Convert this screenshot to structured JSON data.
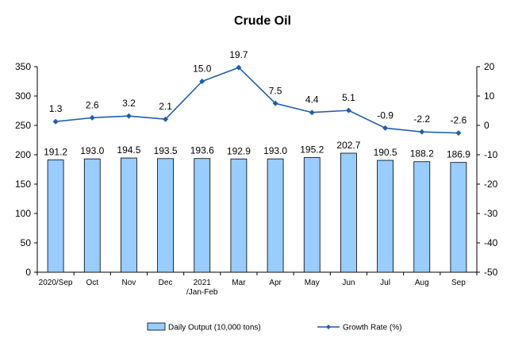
{
  "chart_data": {
    "type": "bar",
    "title": "Crude Oil",
    "categories": [
      [
        "2020/Sep"
      ],
      [
        "Oct"
      ],
      [
        "Nov"
      ],
      [
        "Dec"
      ],
      [
        "2021",
        "/Jan-Feb"
      ],
      [
        "Mar"
      ],
      [
        "Apr"
      ],
      [
        "May"
      ],
      [
        "Jun"
      ],
      [
        "Jul"
      ],
      [
        "Aug"
      ],
      [
        "Sep"
      ]
    ],
    "series": [
      {
        "name": "Daily Output (10,000 tons)",
        "type": "bar",
        "axis": "left",
        "color": "#99ccff",
        "values": [
          191.2,
          193.0,
          194.5,
          193.5,
          193.6,
          192.9,
          193.0,
          195.2,
          202.7,
          190.5,
          188.2,
          186.9
        ],
        "labels": [
          "191.2",
          "193.0",
          "194.5",
          "193.5",
          "193.6",
          "192.9",
          "193.0",
          "195.2",
          "202.7",
          "190.5",
          "188.2",
          "186.9"
        ]
      },
      {
        "name": "Growth Rate (%)",
        "type": "line",
        "axis": "right",
        "color": "#1f5fa8",
        "values": [
          1.3,
          2.6,
          3.2,
          2.1,
          15.0,
          19.7,
          7.5,
          4.4,
          5.1,
          -0.9,
          -2.2,
          -2.6
        ],
        "labels": [
          "1.3",
          "2.6",
          "3.2",
          "2.1",
          "15.0",
          "19.7",
          "7.5",
          "4.4",
          "5.1",
          "-0.9",
          "-2.2",
          "-2.6"
        ]
      }
    ],
    "y_left": {
      "min": 0,
      "max": 350,
      "step": 50,
      "ticks": [
        "0",
        "50",
        "100",
        "150",
        "200",
        "250",
        "300",
        "350"
      ]
    },
    "y_right": {
      "min": -50,
      "max": 20,
      "step": 10,
      "ticks": [
        "-50",
        "-40",
        "-30",
        "-20",
        "-10",
        "0",
        "10",
        "20"
      ]
    },
    "grid": false,
    "legend_position": "bottom"
  }
}
